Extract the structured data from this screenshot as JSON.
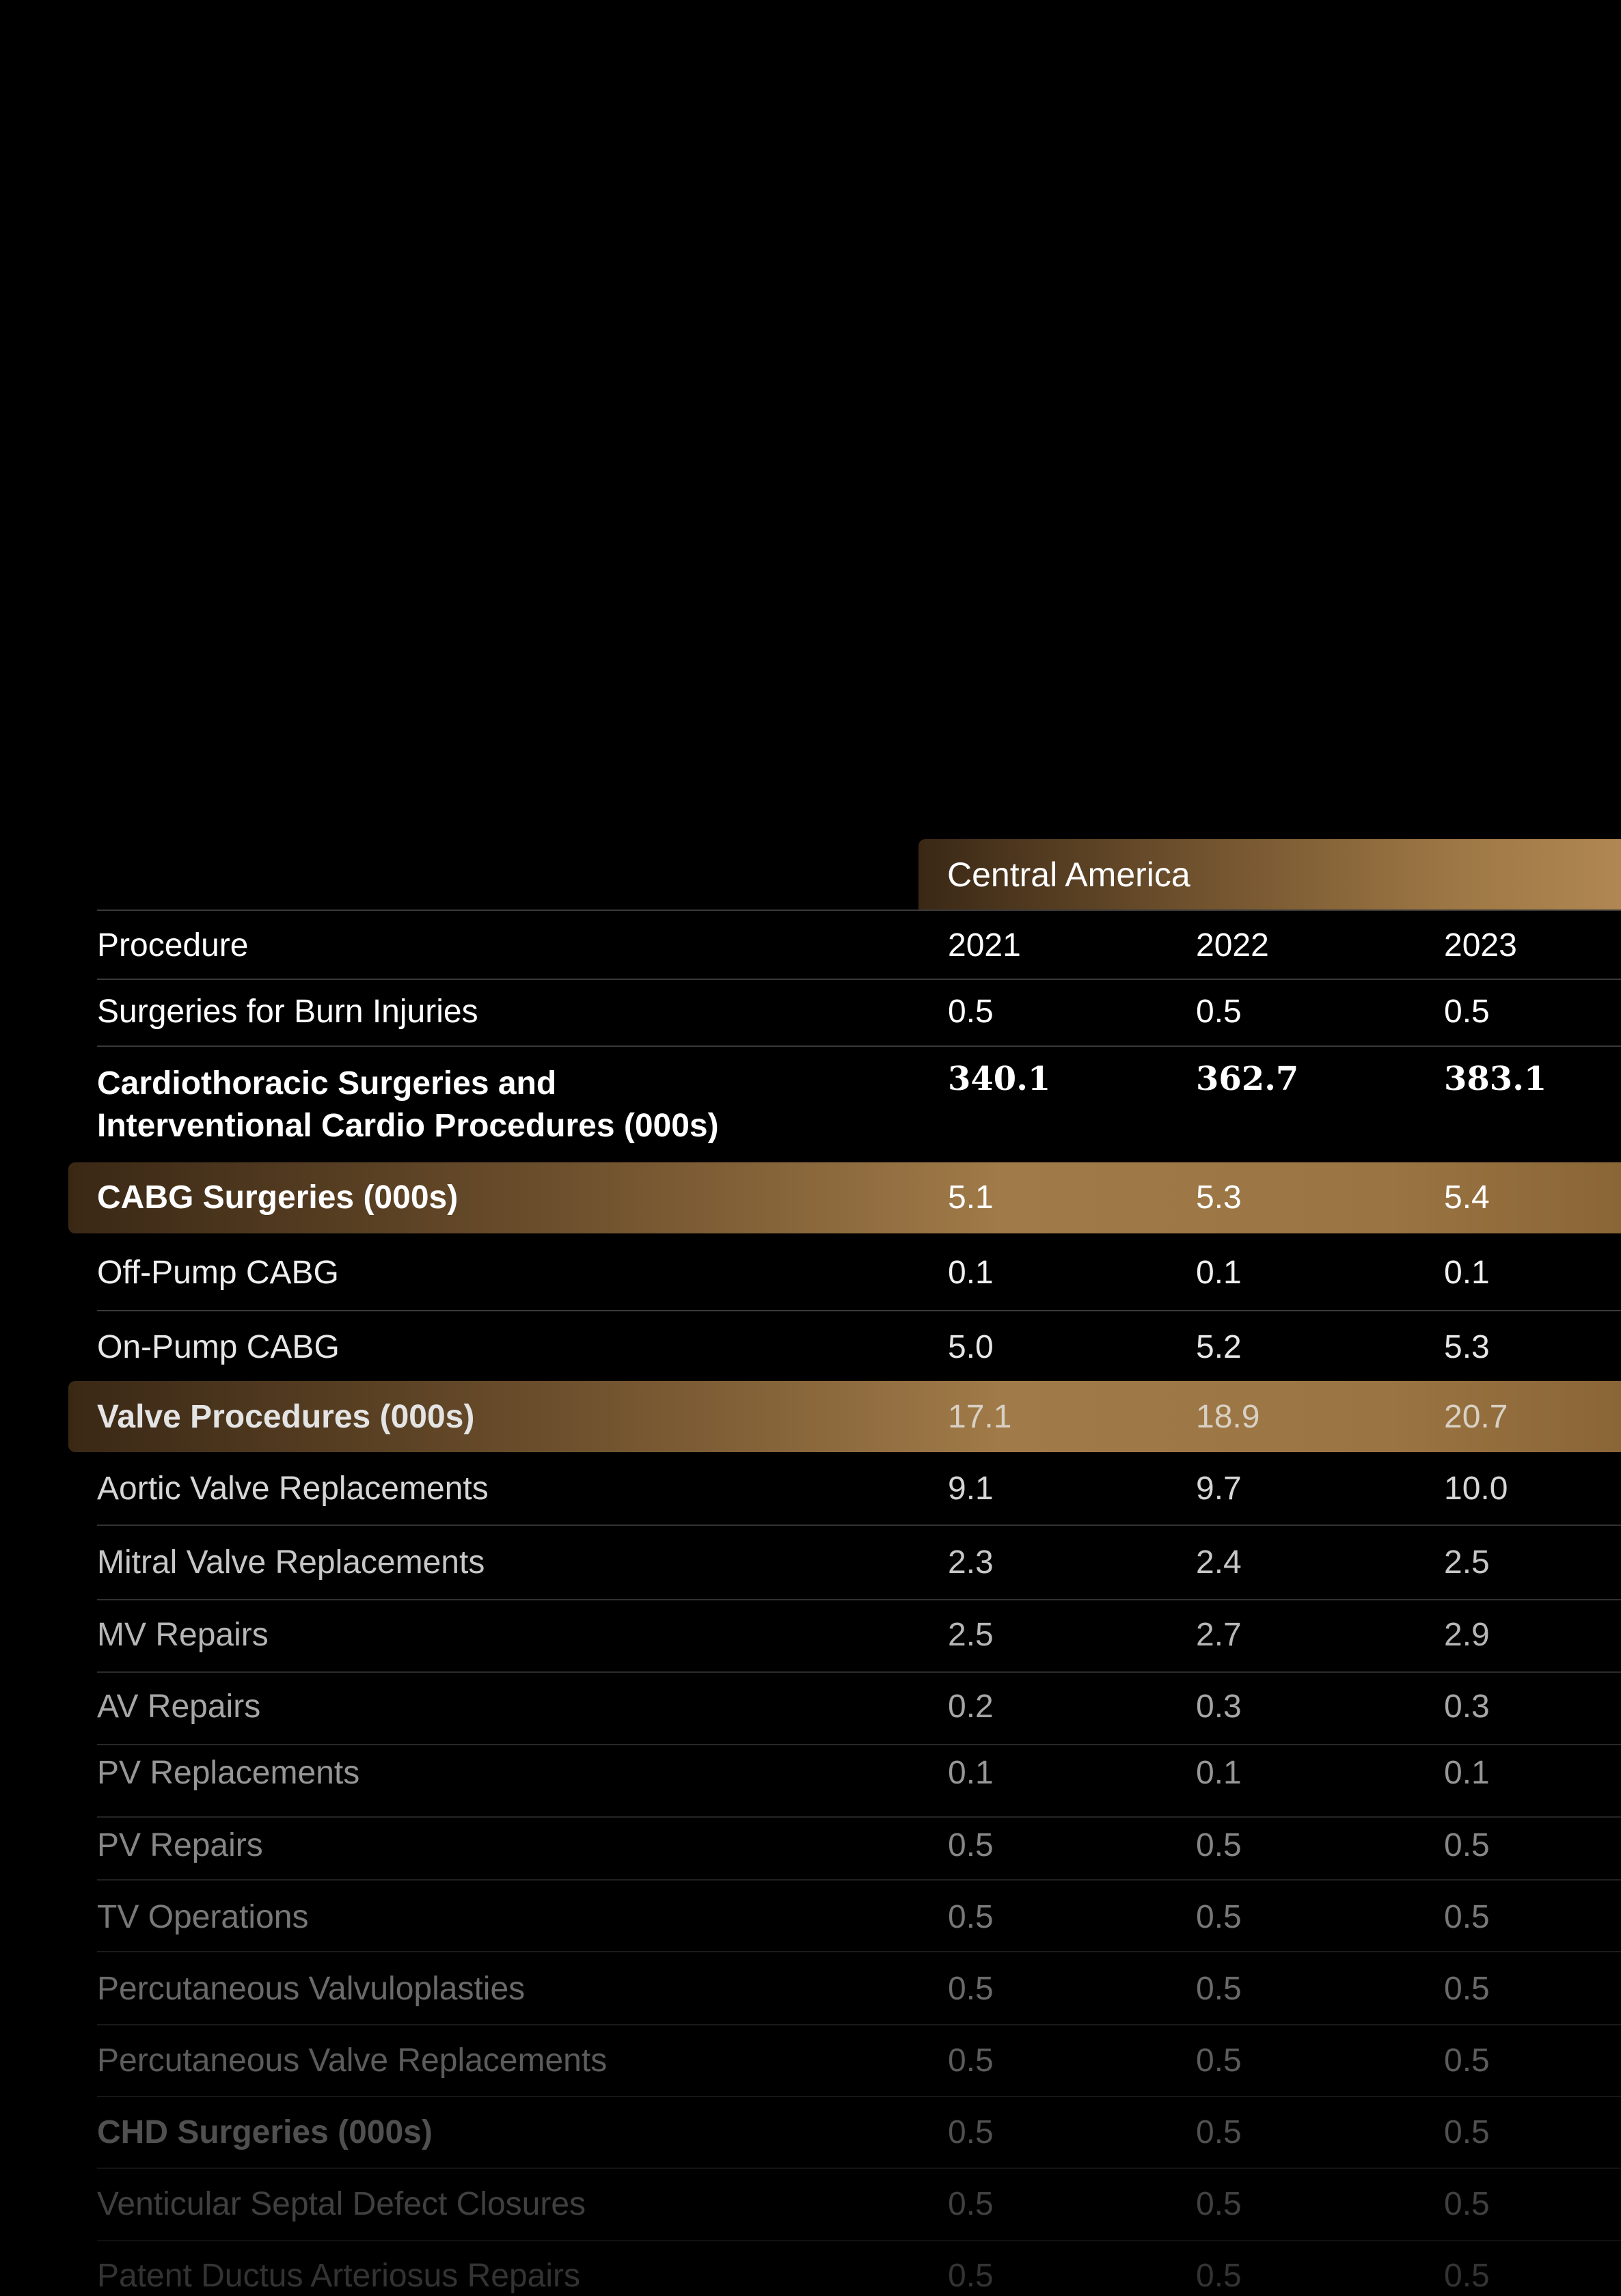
{
  "table": {
    "region": "Central America",
    "header": {
      "label": "Procedure",
      "years": [
        "2021",
        "2022",
        "2023"
      ]
    },
    "rows": [
      {
        "label": "Surgeries for Burn Injuries",
        "values": [
          "0.5",
          "0.5",
          "0.5"
        ]
      },
      {
        "label_line1": "Cardiothoracic Surgeries and",
        "label_line2": "Interventional Cardio Procedures (000s)",
        "values": [
          "340.1",
          "362.7",
          "383.1"
        ]
      },
      {
        "label": "CABG Surgeries (000s)",
        "values": [
          "5.1",
          "5.3",
          "5.4"
        ]
      },
      {
        "label": "Off-Pump CABG",
        "values": [
          "0.1",
          "0.1",
          "0.1"
        ]
      },
      {
        "label": "On-Pump CABG",
        "values": [
          "5.0",
          "5.2",
          "5.3"
        ]
      },
      {
        "label": "Valve Procedures (000s)",
        "values": [
          "17.1",
          "18.9",
          "20.7"
        ]
      },
      {
        "label": "Aortic Valve Replacements",
        "values": [
          "9.1",
          "9.7",
          "10.0"
        ]
      },
      {
        "label": "Mitral Valve Replacements",
        "values": [
          "2.3",
          "2.4",
          "2.5"
        ]
      },
      {
        "label": "MV Repairs",
        "values": [
          "2.5",
          "2.7",
          "2.9"
        ]
      },
      {
        "label": "AV Repairs",
        "values": [
          "0.2",
          "0.3",
          "0.3"
        ]
      },
      {
        "label": "PV Replacements",
        "values": [
          "0.1",
          "0.1",
          "0.1"
        ]
      },
      {
        "label": "PV Repairs",
        "values": [
          "0.5",
          "0.5",
          "0.5"
        ]
      },
      {
        "label": "TV Operations",
        "values": [
          "0.5",
          "0.5",
          "0.5"
        ]
      },
      {
        "label": "Percutaneous Valvuloplasties",
        "values": [
          "0.5",
          "0.5",
          "0.5"
        ]
      },
      {
        "label": "Percutaneous Valve Replacements",
        "values": [
          "0.5",
          "0.5",
          "0.5"
        ]
      },
      {
        "label": "CHD Surgeries (000s)",
        "values": [
          "0.5",
          "0.5",
          "0.5"
        ]
      },
      {
        "label": "Venticular Septal Defect Closures",
        "values": [
          "0.5",
          "0.5",
          "0.5"
        ]
      },
      {
        "label": "Patent Ductus Arteriosus Repairs",
        "values": [
          "0.5",
          "0.5",
          "0.5"
        ]
      }
    ]
  }
}
